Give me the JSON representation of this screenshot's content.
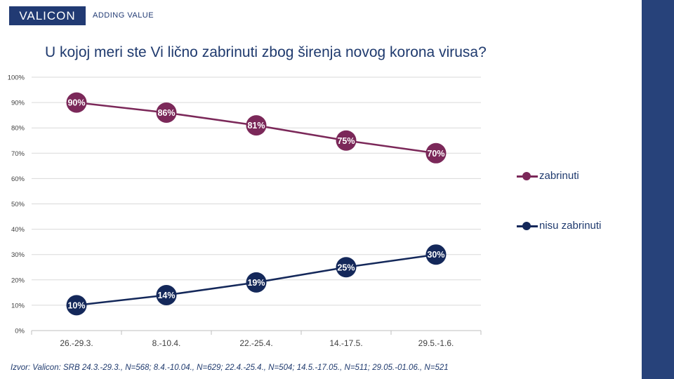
{
  "header": {
    "logo_text": "VALICON",
    "tagline": "ADDING VALUE"
  },
  "colors": {
    "brand": "#213a73",
    "sidebar": "#27427a",
    "series_1": "#7b2859",
    "series_2": "#14285a"
  },
  "chart_data": {
    "type": "line",
    "title": "U kojoj meri ste Vi lično zabrinuti zbog širenja novog korona virusa?",
    "categories": [
      "26.-29.3.",
      "8.-10.4.",
      "22.-25.4.",
      "14.-17.5.",
      "29.5.-1.6."
    ],
    "series": [
      {
        "name": "zabrinuti",
        "values": [
          90,
          86,
          81,
          75,
          70
        ],
        "labels": [
          "90%",
          "86%",
          "81%",
          "75%",
          "70%"
        ]
      },
      {
        "name": "nisu zabrinuti",
        "values": [
          10,
          14,
          19,
          25,
          30
        ],
        "labels": [
          "10%",
          "14%",
          "19%",
          "25%",
          "30%"
        ]
      }
    ],
    "ylim": [
      0,
      100
    ],
    "yticks": [
      "0%",
      "10%",
      "20%",
      "30%",
      "40%",
      "50%",
      "60%",
      "70%",
      "80%",
      "90%",
      "100%"
    ],
    "grid": true,
    "legend": "right"
  },
  "footer": {
    "source": "Izvor: Valicon: SRB 24.3.-29.3., N=568; 8.4.-10.04., N=629; 22.4.-25.4., N=504; 14.5.-17.05., N=511; 29.05.-01.06., N=521"
  }
}
